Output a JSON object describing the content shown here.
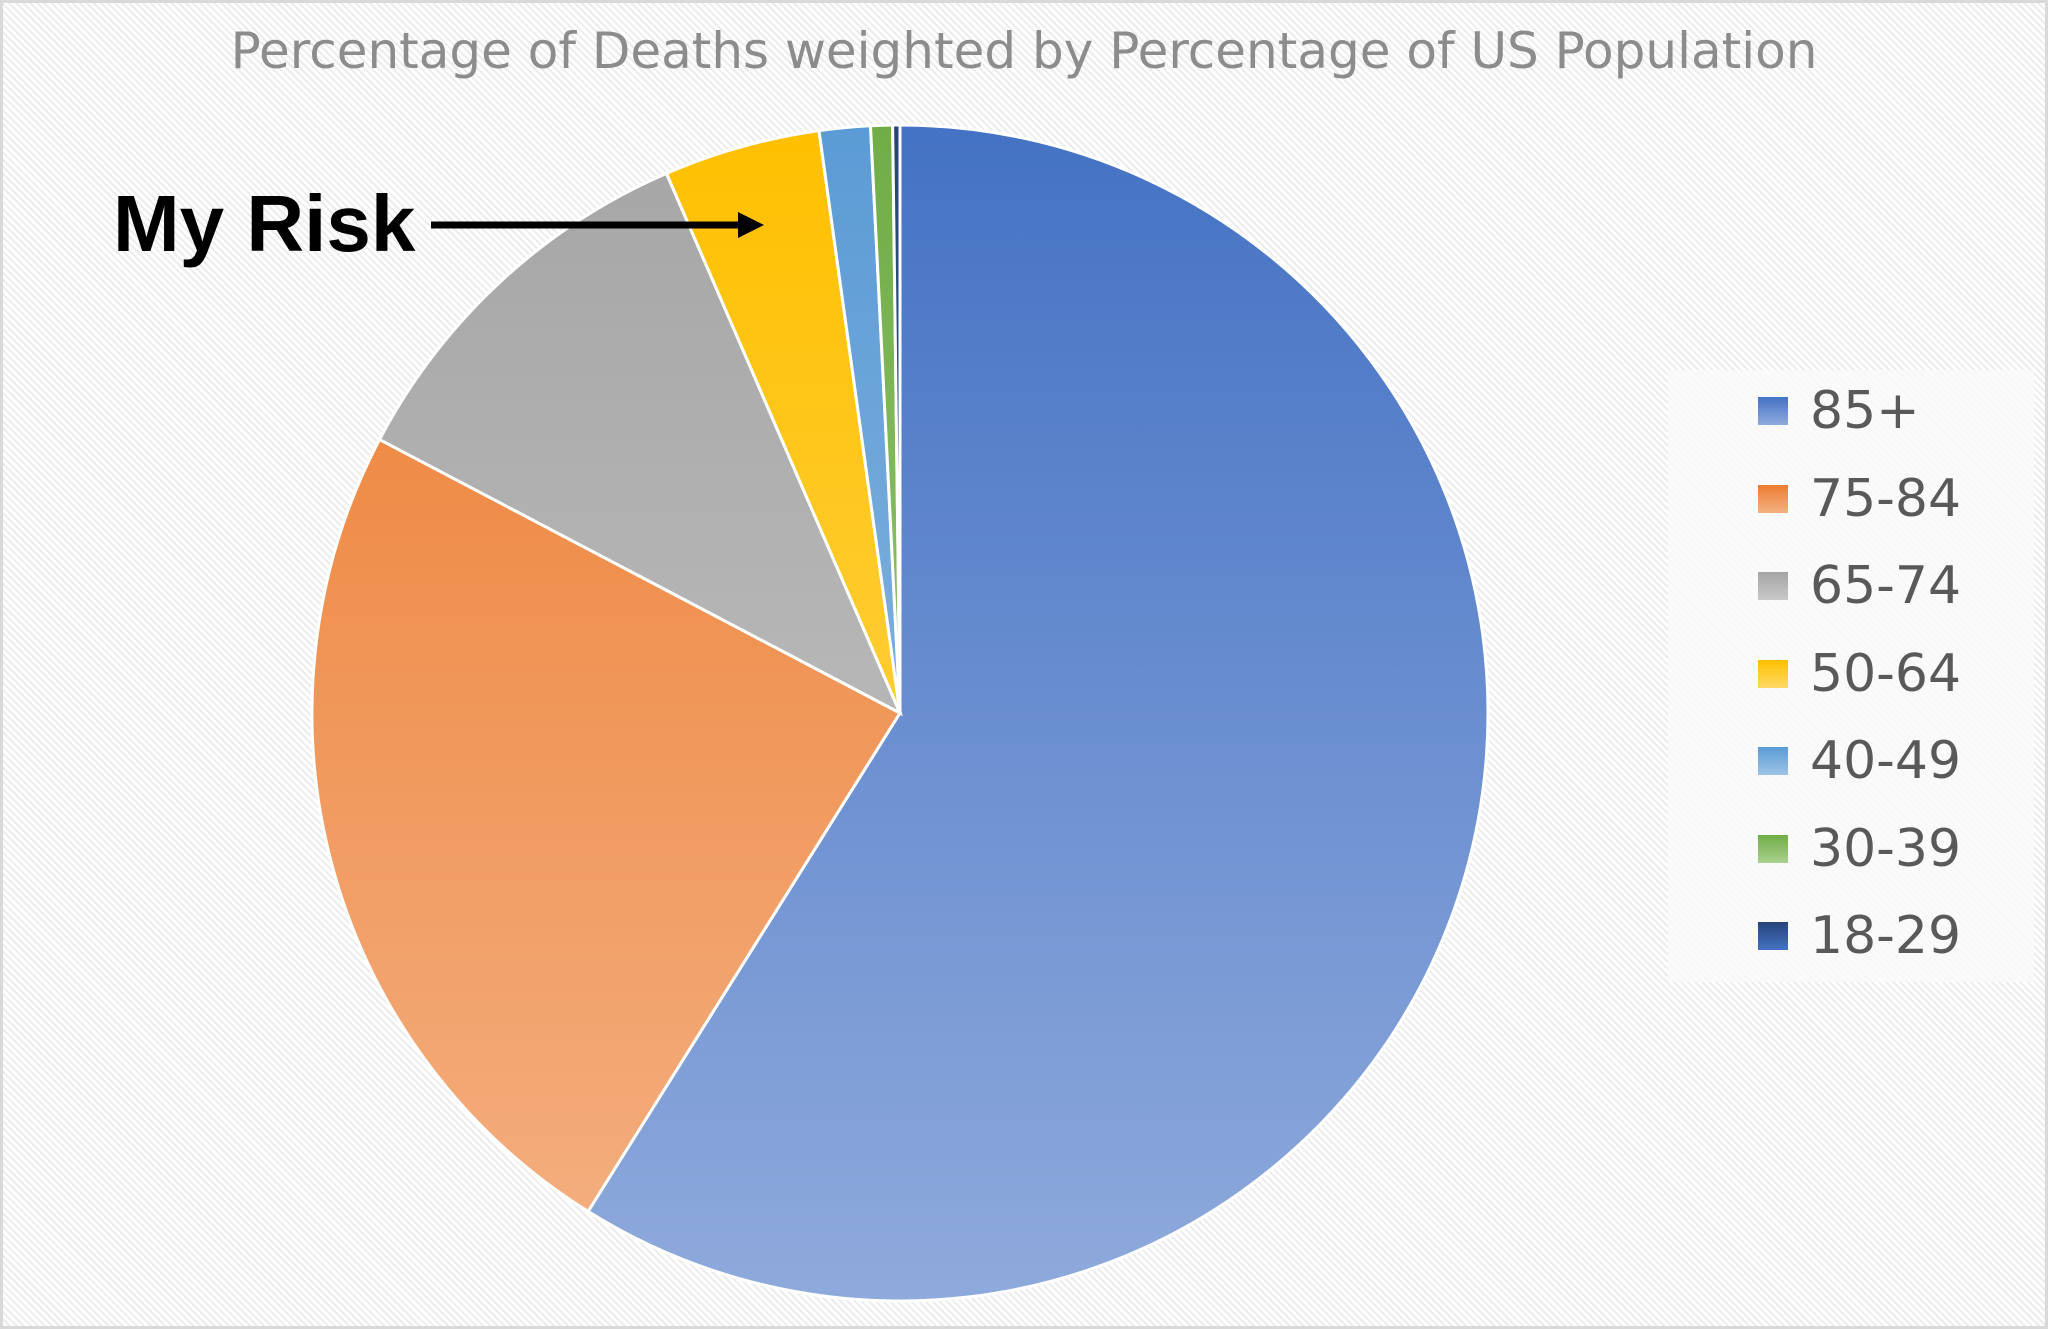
{
  "chart_data": {
    "type": "pie",
    "title": "Percentage of Deaths weighted by Percentage of US Population",
    "start_angle": "12 o'clock, clockwise",
    "legend_position": "right",
    "slices": [
      {
        "label": "85+",
        "value": 58.9,
        "color": "#4472c4",
        "color_light": "#8faadc"
      },
      {
        "label": "75-84",
        "value": 23.8,
        "color": "#ed7d31",
        "color_light": "#f4b183"
      },
      {
        "label": "65-74",
        "value": 10.8,
        "color": "#a5a5a5",
        "color_light": "#c9c9c9"
      },
      {
        "label": "50-64",
        "value": 4.3,
        "color": "#ffc000",
        "color_light": "#ffd966"
      },
      {
        "label": "40-49",
        "value": 1.4,
        "color": "#5b9bd5",
        "color_light": "#9dc3e6"
      },
      {
        "label": "30-39",
        "value": 0.6,
        "color": "#70ad47",
        "color_light": "#a9d18e"
      },
      {
        "label": "18-29",
        "value": 0.2,
        "color": "#264478",
        "color_light": "#4472c4"
      }
    ],
    "annotation": {
      "text": "My Risk",
      "points_to": "50-64"
    }
  }
}
